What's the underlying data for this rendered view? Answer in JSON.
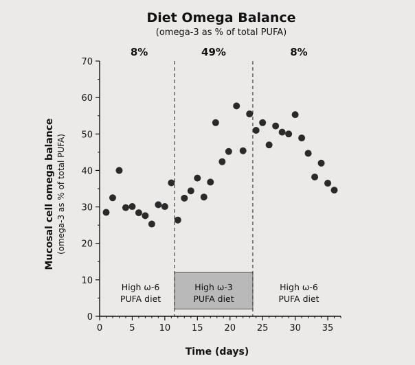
{
  "chart_data": {
    "type": "scatter",
    "title": "Diet Omega Balance",
    "subtitle": "(omega-3 as % of total PUFA)",
    "xlabel": "Time (days)",
    "ylabel": "Mucosal cell omega balance",
    "ylabel_sub": "(omega-3 as % of total PUFA)",
    "xlim": [
      0,
      37
    ],
    "ylim": [
      0,
      70
    ],
    "xticks": [
      0,
      5,
      10,
      15,
      20,
      25,
      30,
      35
    ],
    "yticks": [
      0,
      10,
      20,
      30,
      40,
      50,
      60,
      70
    ],
    "grid": false,
    "phase_boundaries": [
      11.5,
      23.5
    ],
    "phases": [
      {
        "percent": "8%",
        "diet_line1": "High ω-6",
        "diet_line2": "PUFA diet",
        "x_start": 0,
        "x_end": 11.5,
        "shaded": false
      },
      {
        "percent": "49%",
        "diet_line1": "High ω-3",
        "diet_line2": "PUFA diet",
        "x_start": 11.5,
        "x_end": 23.5,
        "shaded": true,
        "shade_range_y": [
          2,
          12
        ]
      },
      {
        "percent": "8%",
        "diet_line1": "High ω-6",
        "diet_line2": "PUFA diet",
        "x_start": 23.5,
        "x_end": 37,
        "shaded": false
      }
    ],
    "points": [
      {
        "x": 1,
        "y": 28.5
      },
      {
        "x": 2,
        "y": 32.5
      },
      {
        "x": 3,
        "y": 40
      },
      {
        "x": 4,
        "y": 29.8
      },
      {
        "x": 5,
        "y": 30.1
      },
      {
        "x": 6,
        "y": 28.4
      },
      {
        "x": 7,
        "y": 27.6
      },
      {
        "x": 8,
        "y": 25.3
      },
      {
        "x": 9,
        "y": 30.6
      },
      {
        "x": 10,
        "y": 30.1
      },
      {
        "x": 11,
        "y": 36.6
      },
      {
        "x": 12,
        "y": 26.4
      },
      {
        "x": 13,
        "y": 32.4
      },
      {
        "x": 14,
        "y": 34.4
      },
      {
        "x": 15,
        "y": 37.9
      },
      {
        "x": 16,
        "y": 32.7
      },
      {
        "x": 17,
        "y": 36.8
      },
      {
        "x": 17.8,
        "y": 53.1
      },
      {
        "x": 18.8,
        "y": 42.4
      },
      {
        "x": 19.8,
        "y": 45.2
      },
      {
        "x": 21,
        "y": 57.7
      },
      {
        "x": 22,
        "y": 45.4
      },
      {
        "x": 23,
        "y": 55.5
      },
      {
        "x": 24,
        "y": 51
      },
      {
        "x": 25,
        "y": 53.1
      },
      {
        "x": 26,
        "y": 47
      },
      {
        "x": 27,
        "y": 52.2
      },
      {
        "x": 28,
        "y": 50.5
      },
      {
        "x": 29,
        "y": 50
      },
      {
        "x": 30,
        "y": 55.3
      },
      {
        "x": 31,
        "y": 48.9
      },
      {
        "x": 32,
        "y": 44.7
      },
      {
        "x": 33,
        "y": 38.2
      },
      {
        "x": 34,
        "y": 42
      },
      {
        "x": 35,
        "y": 36.5
      },
      {
        "x": 36,
        "y": 34.6
      }
    ],
    "colors": {
      "points": "#2a2a2a",
      "shade": "#b9b9b9",
      "axis": "#111111"
    }
  }
}
